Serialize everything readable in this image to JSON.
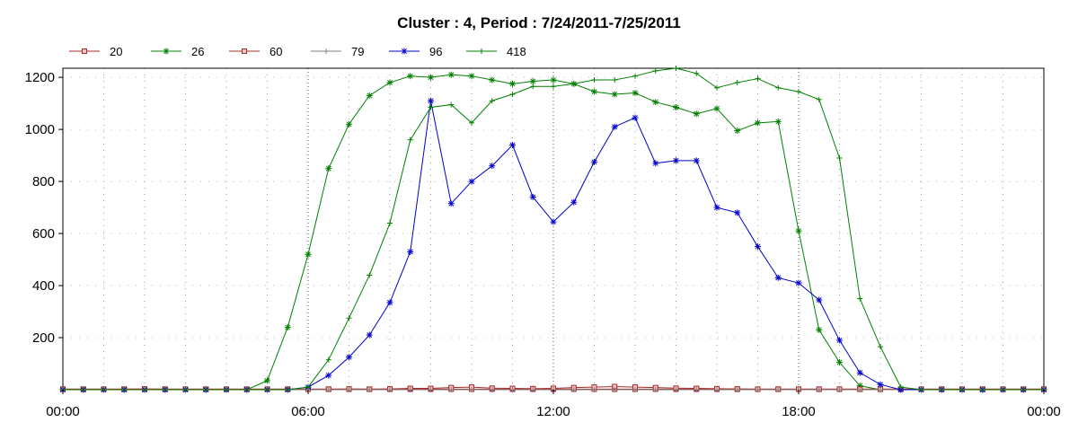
{
  "chart_data": {
    "type": "line",
    "title": "Cluster : 4, Period : 7/24/2011-7/25/2011",
    "xlabel": "",
    "ylabel": "",
    "x_tick_labels": [
      "00:00",
      "06:00",
      "12:00",
      "18:00",
      "00:00"
    ],
    "y_ticks": [
      200,
      400,
      600,
      800,
      1000,
      1200
    ],
    "ylim": [
      0,
      1235
    ],
    "xlim_hours": [
      0,
      24
    ],
    "grid": "dotted vertical lines every hour, horizontal at y ticks",
    "legend_position": "top-left",
    "x_hours": [
      0,
      0.5,
      1,
      1.5,
      2,
      2.5,
      3,
      3.5,
      4,
      4.5,
      5,
      5.5,
      6,
      6.5,
      7,
      7.5,
      8,
      8.5,
      9,
      9.5,
      10,
      10.5,
      11,
      11.5,
      12,
      12.5,
      13,
      13.5,
      14,
      14.5,
      15,
      15.5,
      16,
      16.5,
      17,
      17.5,
      18,
      18.5,
      19,
      19.5,
      20,
      20.5,
      21,
      21.5,
      22,
      22.5,
      23,
      23.5,
      24
    ],
    "series": [
      {
        "name": "20",
        "color": "#a52a2a",
        "marker": "square",
        "values": [
          2,
          2,
          2,
          2,
          2,
          2,
          2,
          2,
          2,
          2,
          2,
          2,
          2,
          2,
          2,
          2,
          2,
          2,
          2,
          2,
          2,
          2,
          2,
          2,
          2,
          2,
          2,
          2,
          2,
          2,
          2,
          2,
          2,
          2,
          2,
          2,
          2,
          2,
          2,
          2,
          2,
          2,
          2,
          2,
          2,
          2,
          2,
          2,
          2
        ]
      },
      {
        "name": "26",
        "color": "#008000",
        "marker": "asterisk",
        "values": [
          0,
          0,
          0,
          0,
          0,
          0,
          0,
          0,
          0,
          0,
          35,
          240,
          520,
          850,
          1020,
          1130,
          1180,
          1205,
          1200,
          1210,
          1205,
          1190,
          1175,
          1185,
          1190,
          1175,
          1145,
          1135,
          1140,
          1105,
          1085,
          1060,
          1080,
          995,
          1025,
          1030,
          610,
          230,
          105,
          15,
          0,
          0,
          0,
          0,
          0,
          0,
          0,
          0,
          0
        ]
      },
      {
        "name": "60",
        "color": "#a52a2a",
        "marker": "square",
        "values": [
          2,
          2,
          2,
          2,
          3,
          2,
          2,
          2,
          2,
          2,
          2,
          2,
          2,
          2,
          3,
          2,
          3,
          5,
          5,
          8,
          10,
          6,
          5,
          4,
          5,
          8,
          10,
          12,
          10,
          8,
          6,
          5,
          4,
          3,
          2,
          2,
          2,
          2,
          2,
          2,
          2,
          2,
          2,
          2,
          2,
          2,
          2,
          2,
          2
        ]
      },
      {
        "name": "79",
        "color": "#808080",
        "marker": "plus",
        "values": [
          0,
          0,
          0,
          0,
          0,
          0,
          0,
          0,
          0,
          0,
          0,
          0,
          0,
          0,
          0,
          0,
          0,
          0,
          0,
          0,
          0,
          0,
          0,
          0,
          0,
          0,
          0,
          0,
          0,
          0,
          0,
          0,
          0,
          0,
          0,
          0,
          0,
          0,
          0,
          0,
          0,
          0,
          0,
          0,
          0,
          0,
          0,
          0,
          0
        ]
      },
      {
        "name": "96",
        "color": "#0000cd",
        "marker": "asterisk",
        "values": [
          0,
          0,
          0,
          0,
          0,
          0,
          0,
          0,
          0,
          0,
          0,
          0,
          10,
          55,
          125,
          210,
          335,
          530,
          1110,
          715,
          800,
          860,
          940,
          740,
          645,
          720,
          875,
          1010,
          1045,
          870,
          880,
          880,
          700,
          680,
          550,
          430,
          410,
          345,
          190,
          65,
          20,
          0,
          0,
          0,
          0,
          0,
          0,
          0,
          0
        ]
      },
      {
        "name": "418",
        "color": "#008000",
        "marker": "plus",
        "values": [
          0,
          0,
          0,
          0,
          0,
          0,
          0,
          0,
          0,
          0,
          0,
          0,
          10,
          115,
          275,
          440,
          640,
          960,
          1085,
          1095,
          1025,
          1110,
          1135,
          1165,
          1165,
          1175,
          1190,
          1190,
          1205,
          1225,
          1235,
          1215,
          1160,
          1180,
          1195,
          1160,
          1145,
          1115,
          890,
          350,
          165,
          10,
          0,
          0,
          0,
          0,
          0,
          0,
          0
        ]
      }
    ]
  }
}
